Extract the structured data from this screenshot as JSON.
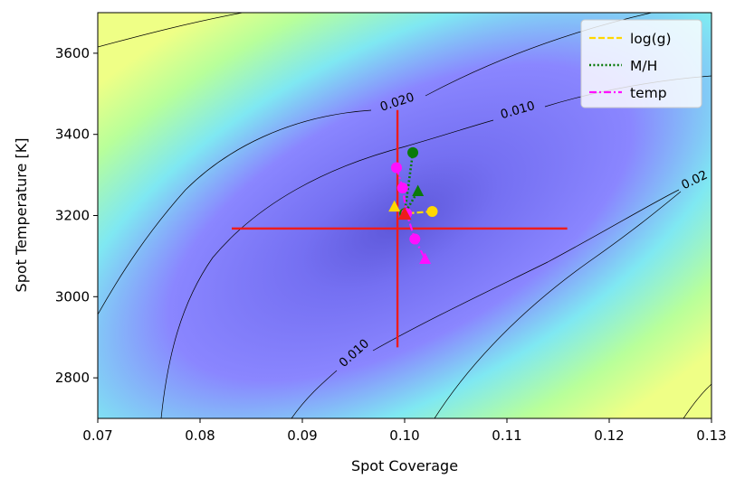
{
  "chart_data": {
    "type": "contour",
    "xlabel": "Spot Coverage",
    "ylabel": "Spot Temperature [K]",
    "xlim": [
      0.07,
      0.13
    ],
    "ylim": [
      2700,
      3700
    ],
    "xticks": [
      0.07,
      0.08,
      0.09,
      0.1,
      0.11,
      0.12,
      0.13
    ],
    "xtick_labels": [
      "0.07",
      "0.08",
      "0.09",
      "0.10",
      "0.11",
      "0.12",
      "0.13"
    ],
    "yticks": [
      2800,
      3000,
      3200,
      3400,
      3600
    ],
    "ytick_labels": [
      "2800",
      "3000",
      "3200",
      "3400",
      "3600"
    ],
    "heatmap": {
      "colormap": [
        "#2b1fff",
        "#6e6cf5",
        "#7fe6f0",
        "#c6ff92",
        "#ecff8a"
      ],
      "note": "chi-square style surface, minimum near the best fit"
    },
    "contour_levels": [
      {
        "level": 0.01,
        "label": "0.010"
      },
      {
        "level": 0.02,
        "label": "0.020"
      }
    ],
    "contour_labels": [
      "0.020",
      "0.010",
      "0.02",
      "0.010"
    ],
    "best_fit": {
      "x": 0.0993,
      "y": 3168,
      "x_err": [
        0.0831,
        0.1159
      ],
      "y_err": [
        2875,
        3460
      ],
      "color": "#ee1c1c"
    },
    "series": [
      {
        "name": "log(g)",
        "style": "dashed",
        "color": "#ffd700",
        "points": [
          {
            "x": 0.1027,
            "y": 3210,
            "marker": "circle"
          },
          {
            "x": 0.1,
            "y": 3205,
            "marker": "circle"
          },
          {
            "x": 0.099,
            "y": 3222,
            "marker": "triangle"
          }
        ]
      },
      {
        "name": "M/H",
        "style": "dotted",
        "color": "#0a7a0a",
        "points": [
          {
            "x": 0.1008,
            "y": 3355,
            "marker": "circle"
          },
          {
            "x": 0.1,
            "y": 3205,
            "marker": "circle"
          },
          {
            "x": 0.1013,
            "y": 3260,
            "marker": "triangle"
          }
        ]
      },
      {
        "name": "temp",
        "style": "dashdot",
        "color": "#ff10ff",
        "points": [
          {
            "x": 0.0992,
            "y": 3318,
            "marker": "circle"
          },
          {
            "x": 0.0998,
            "y": 3268,
            "marker": "circle"
          },
          {
            "x": 0.1002,
            "y": 3205,
            "marker": "circle"
          },
          {
            "x": 0.101,
            "y": 3142,
            "marker": "circle"
          },
          {
            "x": 0.102,
            "y": 3093,
            "marker": "triangle"
          }
        ]
      }
    ],
    "center_marker": {
      "x": 0.1,
      "y": 3203,
      "color": "#ee1c1c"
    },
    "legend": {
      "entries": [
        "log(g)",
        "M/H",
        "temp"
      ],
      "placement": "top-right"
    }
  }
}
